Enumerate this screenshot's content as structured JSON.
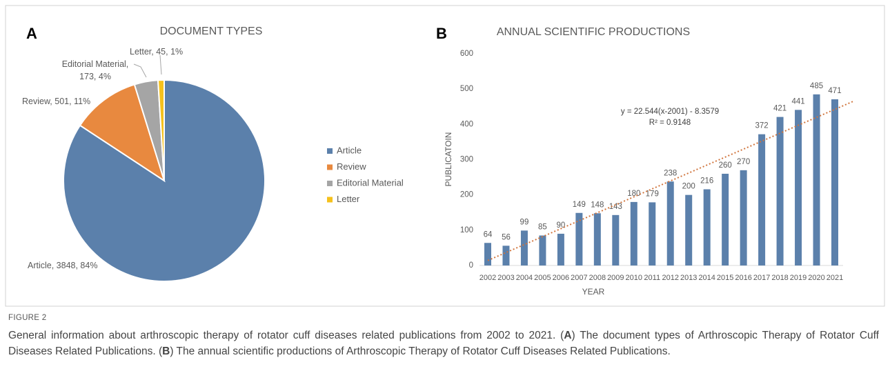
{
  "figure": {
    "label": "FIGURE 2",
    "caption": [
      "General information about arthroscopic therapy of rotator cuff diseases related publications from 2002 to 2021. (",
      "A",
      ") The document types of Arthroscopic Therapy of Rotator Cuff Diseases Related Publications. (",
      "B",
      ") The annual scientific productions of Arthroscopic Therapy of Rotator Cuff Diseases Related Publications."
    ]
  },
  "chart_data": [
    {
      "type": "pie",
      "panel": "A",
      "title": "DOCUMENT TYPES",
      "categories": [
        "Article",
        "Review",
        "Editorial Material",
        "Letter"
      ],
      "values": [
        3848,
        501,
        173,
        45
      ],
      "value_labels": [
        "Article, 3848, 84%",
        "Review, 501, 11%",
        "Editorial Material, 173, 4%",
        "Letter, 45, 1%"
      ],
      "colors": [
        "#5b80ab",
        "#e8893f",
        "#a5a5a5",
        "#f5c11c"
      ],
      "legend": "right"
    },
    {
      "type": "bar",
      "panel": "B",
      "title": "ANNUAL SCIENTIFIC PRODUCTIONS",
      "xlabel": "YEAR",
      "ylabel": "PUBLICATOIN",
      "categories": [
        "2002",
        "2003",
        "2004",
        "2005",
        "2006",
        "2007",
        "2008",
        "2009",
        "2010",
        "2011",
        "2012",
        "2013",
        "2014",
        "2015",
        "2016",
        "2017",
        "2018",
        "2019",
        "2020",
        "2021"
      ],
      "values": [
        64,
        56,
        99,
        85,
        90,
        149,
        148,
        143,
        180,
        179,
        238,
        200,
        216,
        260,
        270,
        372,
        421,
        441,
        485,
        471
      ],
      "ylim": [
        0,
        600
      ],
      "yticks": [
        0,
        100,
        200,
        300,
        400,
        500,
        600
      ],
      "color": "#5b80ab",
      "grid": false,
      "trendline": {
        "equation": "y = 22.544(x-2001) - 8.3579",
        "r2": "R² = 0.9148",
        "slope": 22.544,
        "intercept": -8.3579,
        "x0": 2001,
        "color": "#d0743c"
      }
    }
  ]
}
